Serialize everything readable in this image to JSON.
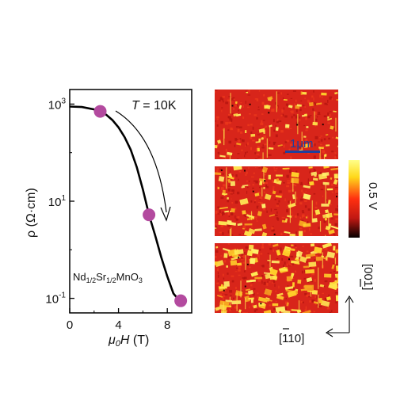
{
  "chart_data": {
    "type": "line",
    "title": "",
    "xlabel": "μ0H (T)",
    "ylabel": "ρ (Ω·cm)",
    "yscale": "log",
    "xlim": [
      0,
      10
    ],
    "ylim_log10": [
      -1.3,
      3.3
    ],
    "x_ticks": [
      "0",
      "4",
      "8"
    ],
    "x_tick_values": [
      0,
      4,
      8
    ],
    "y_tick_values_log10": [
      3,
      1,
      -1
    ],
    "y_ticks": [
      {
        "base": "10",
        "exp": "3"
      },
      {
        "base": "10",
        "exp": "1"
      },
      {
        "base": "10",
        "exp": "-1"
      }
    ],
    "annotations": {
      "temperature_T": "T",
      "temperature_value": " = 10K",
      "material": {
        "a": "Nd",
        "a_sub": "1/2",
        "b": "Sr",
        "b_sub": "1/2",
        "c": "MnO",
        "c_sub": "3"
      }
    },
    "curve": [
      {
        "x": 0.0,
        "logy": 2.95
      },
      {
        "x": 1.0,
        "logy": 2.94
      },
      {
        "x": 2.0,
        "logy": 2.89
      },
      {
        "x": 2.5,
        "logy": 2.85
      },
      {
        "x": 3.0,
        "logy": 2.78
      },
      {
        "x": 3.5,
        "logy": 2.67
      },
      {
        "x": 4.0,
        "logy": 2.52
      },
      {
        "x": 4.5,
        "logy": 2.32
      },
      {
        "x": 5.0,
        "logy": 2.06
      },
      {
        "x": 5.5,
        "logy": 1.7
      },
      {
        "x": 6.0,
        "logy": 1.24
      },
      {
        "x": 6.5,
        "logy": 0.72
      },
      {
        "x": 7.0,
        "logy": 0.3
      },
      {
        "x": 7.5,
        "logy": -0.15
      },
      {
        "x": 8.0,
        "logy": -0.55
      },
      {
        "x": 8.5,
        "logy": -0.9
      },
      {
        "x": 9.0,
        "logy": -1.05
      }
    ],
    "markers": [
      {
        "x": 2.5,
        "logy": 2.85
      },
      {
        "x": 6.5,
        "logy": 0.72
      },
      {
        "x": 9.1,
        "logy": -1.05
      }
    ]
  },
  "images": {
    "scale_bar_label": "1μm",
    "colorbar_label": "0.5 V",
    "axis_vertical": "[001]",
    "axis_horizontal": "[110]"
  },
  "colors": {
    "marker": "#b34a9f",
    "curve": "#000000",
    "scale_bar": "#1f3f9e",
    "map_base": "#d8251a",
    "map_bright": "#ffe64a"
  }
}
